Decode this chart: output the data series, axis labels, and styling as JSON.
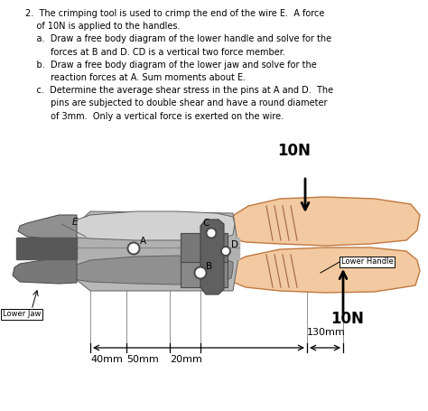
{
  "bg_color": "#ffffff",
  "handle_fill": "#f2c9a0",
  "handle_edge": "#c07840",
  "grip_color": "#905030",
  "body_light": "#d2d2d2",
  "body_mid": "#b8b8b8",
  "body_dark": "#909090",
  "body_darkest": "#686868",
  "body_jaw_dark": "#787878",
  "jaw_slot": "#585858",
  "link_bar_color": "#606060",
  "pivot_color": "#787878",
  "pin_fill": "#ffffff",
  "pin_edge": "#484848",
  "text_color": "#000000",
  "title_line1": "2.  The crimping tool is used to crimp the end of the wire E.  A force",
  "title_line2": "    of 10N is applied to the handles.",
  "title_line3": "    a.  Draw a free body diagram of the lower handle and solve for the",
  "title_line4": "         forces at B and D. CD is a vertical two force member.",
  "title_line5": "    b.  Draw a free body diagram of the lower jaw and solve for the",
  "title_line6": "         reaction forces at A. Sum moments about E.",
  "title_line7": "    c.  Determine the average shear stress in the pins at A and D.  The",
  "title_line8": "         pins are subjected to double shear and have a round diameter",
  "title_line9": "         of 3mm.  Only a vertical force is exerted on the wire.",
  "lbl_E": "E",
  "lbl_A": "A",
  "lbl_B": "B",
  "lbl_C": "C",
  "lbl_D": "D",
  "lbl_lower_jaw": "Lower Jaw",
  "lbl_lower_handle": "Lower Handle",
  "lbl_10N_top": "10N",
  "lbl_10N_bot": "10N",
  "lbl_130mm": "130mm",
  "lbl_40mm": "40mm",
  "lbl_50mm": "50mm",
  "lbl_20mm": "20mm",
  "text_fontsize": 7.0,
  "force_fontsize": 12,
  "label_fontsize": 7.5,
  "dim_fontsize": 8.0
}
